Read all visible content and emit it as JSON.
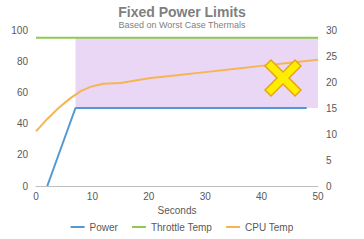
{
  "chart_data": {
    "type": "line",
    "title": "Fixed Power Limits",
    "subtitle": "Based on Worst Case Thermals",
    "x_label": "Seconds",
    "xlim": [
      0,
      50
    ],
    "xticks": [
      0,
      10,
      20,
      30,
      40,
      50
    ],
    "ylim": [
      0,
      100
    ],
    "yticks": [
      0,
      20,
      40,
      60,
      80,
      100
    ],
    "y2lim": [
      0,
      30
    ],
    "y2ticks": [
      0,
      5,
      10,
      15,
      20,
      25,
      30
    ],
    "grid": false,
    "legend": "bottom",
    "series": [
      {
        "name": "Power",
        "color": "#4f9ad6",
        "axis": "y2",
        "x": [
          2,
          7,
          48
        ],
        "values": [
          0,
          15,
          15
        ]
      },
      {
        "name": "Throttle Temp",
        "color": "#8fc94f",
        "x": [
          0,
          50
        ],
        "values": [
          95,
          95
        ]
      },
      {
        "name": "CPU Temp",
        "color": "#f5b554",
        "x": [
          0,
          2,
          4,
          6,
          8,
          10,
          12,
          15,
          20,
          25,
          30,
          35,
          40,
          45,
          50
        ],
        "values": [
          35,
          43,
          50,
          56,
          61,
          64,
          65.5,
          66,
          69,
          71,
          73,
          75,
          77,
          79,
          81
        ]
      }
    ],
    "highlight": {
      "x": [
        7,
        50
      ],
      "y": [
        50,
        95
      ],
      "color": "#e6d0f5"
    }
  }
}
